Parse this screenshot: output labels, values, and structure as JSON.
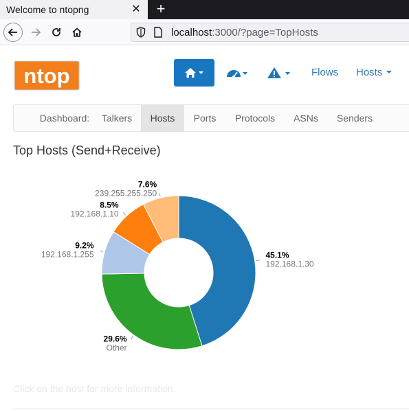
{
  "browser": {
    "tab_title": "Welcome to ntopng",
    "url_host": "localhost",
    "url_rest": ":3000/?page=TopHosts"
  },
  "header": {
    "logo_text": "ntop",
    "flows_label": "Flows",
    "hosts_label": "Hosts"
  },
  "subnav": [
    {
      "label": "Dashboard:",
      "active": false
    },
    {
      "label": "Talkers",
      "active": false
    },
    {
      "label": "Hosts",
      "active": true
    },
    {
      "label": "Ports",
      "active": false
    },
    {
      "label": "Protocols",
      "active": false
    },
    {
      "label": "ASNs",
      "active": false
    },
    {
      "label": "Senders",
      "active": false
    }
  ],
  "page_title": "Top Hosts (Send+Receive)",
  "hint": "Click on the host for more information.",
  "chart_data": {
    "type": "pie",
    "title": "",
    "slices": [
      {
        "label": "192.168.1.30",
        "value": 45.1,
        "pct_label": "45.1%",
        "color": "#1f77b4"
      },
      {
        "label": "Other",
        "value": 29.6,
        "pct_label": "29.6%",
        "color": "#2ca02c"
      },
      {
        "label": "192.168.1.255",
        "value": 9.2,
        "pct_label": "9.2%",
        "color": "#aec7e8"
      },
      {
        "label": "192.168.1.10",
        "value": 8.5,
        "pct_label": "8.5%",
        "color": "#ff7f0e"
      },
      {
        "label": "239.255.255.250",
        "value": 7.6,
        "pct_label": "7.6%",
        "color": "#ffbb78"
      }
    ]
  }
}
